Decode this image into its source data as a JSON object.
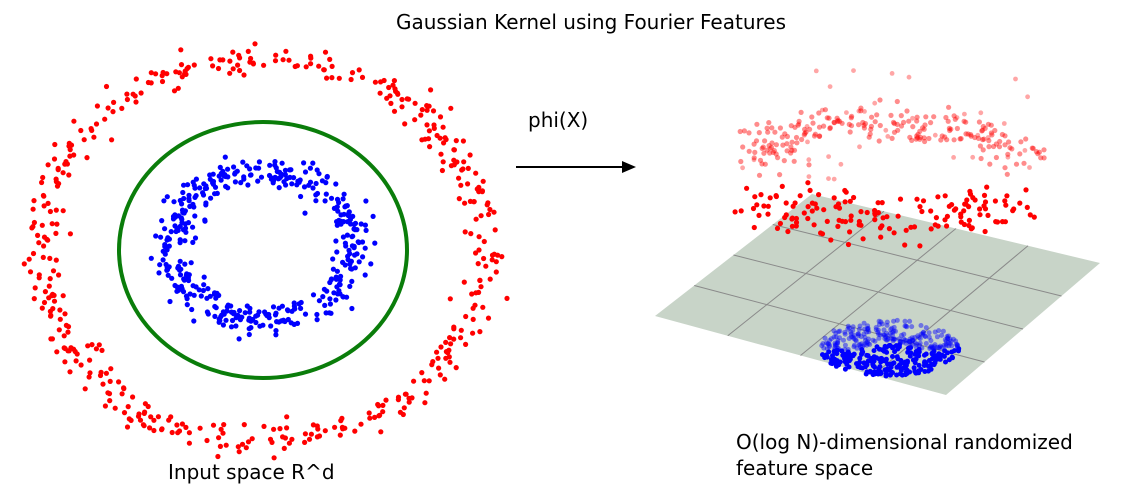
{
  "title": "Gaussian Kernel using Fourier Features",
  "mapping_label": "phi(X)",
  "input_space_label": "Input space R^d",
  "feature_space_label_line1": "O(log N)-dimensional randomized",
  "feature_space_label_line2": "feature space",
  "colors": {
    "outer_class": "#ff0000",
    "inner_class": "#0000ff",
    "decision_boundary": "#0a7d0a",
    "plane_fill": "#c8d4c8",
    "grid_line": "#8a8a8a",
    "arrow": "#000000"
  },
  "classes": [
    {
      "name": "outer ring",
      "color_key": "outer_class"
    },
    {
      "name": "inner ring",
      "color_key": "inner_class"
    }
  ]
}
